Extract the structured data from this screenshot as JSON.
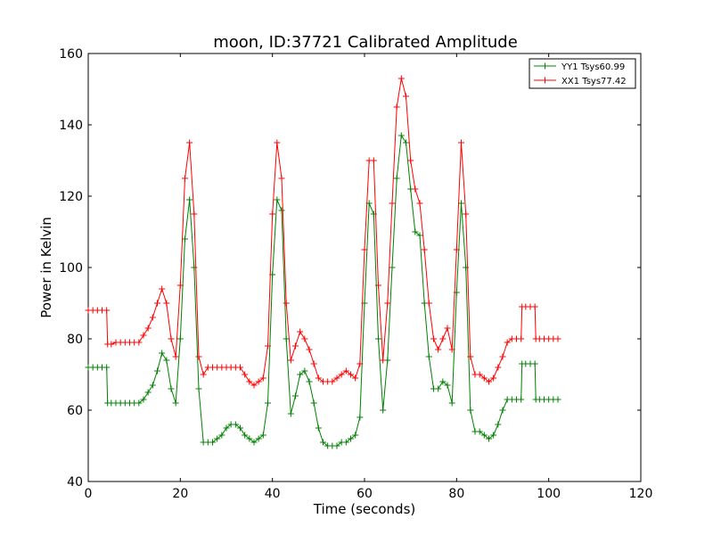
{
  "chart_data": {
    "type": "line",
    "title": "moon, ID:37721 Calibrated Amplitude",
    "xlabel": "Time (seconds)",
    "ylabel": "Power in Kelvin",
    "xlim": [
      0,
      120
    ],
    "ylim": [
      40,
      160
    ],
    "xticks": [
      0,
      20,
      40,
      60,
      80,
      100,
      120
    ],
    "yticks": [
      40,
      60,
      80,
      100,
      120,
      140,
      160
    ],
    "grid": false,
    "legend_position": "top-right",
    "marker": "+",
    "series": [
      {
        "name": "YY1 Tsys60.99",
        "color": "#008000",
        "x": [
          0,
          1,
          2,
          3,
          4,
          4.2,
          5,
          6,
          7,
          8,
          9,
          10,
          11,
          12,
          13,
          14,
          15,
          16,
          17,
          18,
          19,
          20,
          21,
          22,
          23,
          24,
          25,
          26,
          27,
          28,
          29,
          30,
          31,
          32,
          33,
          34,
          35,
          36,
          37,
          38,
          39,
          40,
          41,
          42,
          43,
          44,
          45,
          46,
          47,
          48,
          49,
          50,
          51,
          52,
          53,
          54,
          55,
          56,
          57,
          58,
          59,
          60,
          61,
          62,
          63,
          64,
          65,
          66,
          67,
          68,
          69,
          70,
          71,
          72,
          73,
          74,
          75,
          76,
          77,
          78,
          79,
          80,
          81,
          82,
          83,
          84,
          85,
          86,
          87,
          88,
          89,
          90,
          91,
          92,
          93,
          94,
          94.2,
          95,
          96,
          97,
          97.2,
          98,
          99,
          100,
          101,
          102
        ],
        "y": [
          72,
          72,
          72,
          72,
          72,
          62,
          62,
          62,
          62,
          62,
          62,
          62,
          62,
          63,
          65,
          67,
          71,
          76,
          74,
          66,
          62,
          80,
          108,
          119,
          100,
          66,
          51,
          51,
          51,
          52,
          53,
          55,
          56,
          56,
          55,
          53,
          52,
          51,
          52,
          53,
          62,
          98,
          119,
          116,
          80,
          59,
          64,
          70,
          71,
          68,
          62,
          55,
          51,
          50,
          50,
          50,
          51,
          51,
          52,
          53,
          58,
          90,
          118,
          115,
          80,
          60,
          74,
          100,
          125,
          137,
          135,
          122,
          110,
          109,
          90,
          75,
          66,
          66,
          68,
          67,
          62,
          93,
          118,
          100,
          60,
          54,
          54,
          53,
          52,
          53,
          56,
          60,
          63,
          63,
          63,
          63,
          73,
          73,
          73,
          73,
          63,
          63,
          63,
          63,
          63,
          63
        ]
      },
      {
        "name": "XX1 Tsys77.42",
        "color": "#ff0000",
        "x": [
          0,
          1,
          2,
          3,
          4,
          4.2,
          5,
          6,
          7,
          8,
          9,
          10,
          11,
          12,
          13,
          14,
          15,
          16,
          17,
          18,
          19,
          20,
          21,
          22,
          23,
          24,
          25,
          26,
          27,
          28,
          29,
          30,
          31,
          32,
          33,
          34,
          35,
          36,
          37,
          38,
          39,
          40,
          41,
          42,
          43,
          44,
          45,
          46,
          47,
          48,
          49,
          50,
          51,
          52,
          53,
          54,
          55,
          56,
          57,
          58,
          59,
          60,
          61,
          62,
          63,
          64,
          65,
          66,
          67,
          68,
          69,
          70,
          71,
          72,
          73,
          74,
          75,
          76,
          77,
          78,
          79,
          80,
          81,
          82,
          83,
          84,
          85,
          86,
          87,
          88,
          89,
          90,
          91,
          92,
          93,
          94,
          94.2,
          95,
          96,
          97,
          97.2,
          98,
          99,
          100,
          101,
          102
        ],
        "y": [
          88,
          88,
          88,
          88,
          88,
          78.5,
          78.5,
          79,
          79,
          79,
          79,
          79,
          79,
          81,
          83,
          86,
          90,
          94,
          90,
          80,
          75,
          95,
          125,
          135,
          115,
          75,
          70,
          72,
          72,
          72,
          72,
          72,
          72,
          72,
          72,
          70,
          68,
          67,
          68,
          69,
          78,
          115,
          135,
          125,
          90,
          74,
          78,
          82,
          80,
          77,
          73,
          69,
          68,
          68,
          68,
          69,
          70,
          71,
          70,
          69,
          73,
          105,
          130,
          130,
          95,
          74,
          90,
          118,
          145,
          153,
          148,
          130,
          122,
          118,
          105,
          90,
          80,
          77,
          80,
          83,
          77,
          105,
          135,
          115,
          75,
          70,
          70,
          69,
          68,
          69,
          72,
          75,
          79,
          80,
          80,
          80,
          89,
          89,
          89,
          89,
          80,
          80,
          80,
          80,
          80,
          80
        ]
      }
    ]
  }
}
